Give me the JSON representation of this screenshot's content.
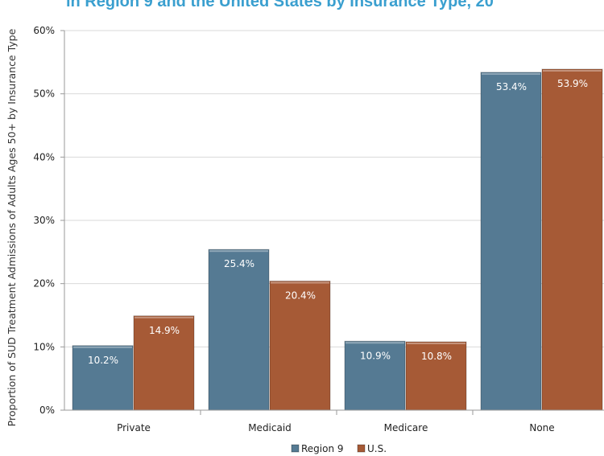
{
  "chart_data": {
    "type": "bar",
    "title": "in Region 9 and the United States by Insurance Type, 20",
    "ylabel": "Proportion of SUD Treatment Admissions of Adults Ages 50+ by Insurance Type",
    "xlabel": "",
    "categories": [
      "Private",
      "Medicaid",
      "Medicare",
      "None"
    ],
    "series": [
      {
        "name": "Region 9",
        "values": [
          10.2,
          25.4,
          10.9,
          53.4
        ],
        "labels": [
          "10.2%",
          "25.4%",
          "10.9%",
          "53.4%"
        ],
        "color": "#557a93"
      },
      {
        "name": "U.S.",
        "values": [
          14.9,
          20.4,
          10.8,
          53.9
        ],
        "labels": [
          "14.9%",
          "20.4%",
          "10.8%",
          "53.9%"
        ],
        "color": "#a65a36"
      }
    ],
    "ylim": [
      0,
      60
    ],
    "yticks": [
      "0%",
      "10%",
      "20%",
      "30%",
      "40%",
      "50%",
      "60%"
    ],
    "grid": true,
    "legend": "bottom"
  }
}
